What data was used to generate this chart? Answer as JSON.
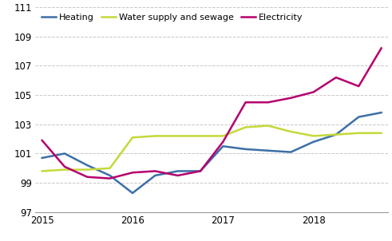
{
  "x_labels": [
    "2015",
    "2016",
    "2017",
    "2018"
  ],
  "x_ticks": [
    0,
    4,
    8,
    12
  ],
  "x_values": [
    0,
    1,
    2,
    3,
    4,
    5,
    6,
    7,
    8,
    9,
    10,
    11,
    12,
    13,
    14,
    15
  ],
  "heating": [
    100.7,
    101.0,
    100.2,
    99.5,
    98.3,
    99.5,
    99.8,
    99.8,
    101.5,
    101.3,
    101.2,
    101.1,
    101.8,
    102.3,
    103.5,
    103.8
  ],
  "water": [
    99.8,
    99.9,
    99.9,
    100.0,
    102.1,
    102.2,
    102.2,
    102.2,
    102.2,
    102.8,
    102.9,
    102.5,
    102.2,
    102.3,
    102.4,
    102.4
  ],
  "electricity": [
    101.9,
    100.1,
    99.4,
    99.3,
    99.7,
    99.8,
    99.5,
    99.8,
    101.8,
    104.5,
    104.5,
    104.8,
    105.2,
    106.2,
    105.6,
    108.2
  ],
  "heating_color": "#3c6fa6",
  "water_color": "#c5d939",
  "electricity_color": "#b5006e",
  "ylim": [
    97,
    111
  ],
  "yticks": [
    97,
    99,
    101,
    103,
    105,
    107,
    109,
    111
  ],
  "linewidth": 1.8,
  "legend_labels": [
    "Heating",
    "Water supply and sewage",
    "Electricity"
  ],
  "grid_color": "#c8c8c8",
  "background_color": "#ffffff",
  "axis_label_fontsize": 8.5,
  "legend_fontsize": 8.0
}
